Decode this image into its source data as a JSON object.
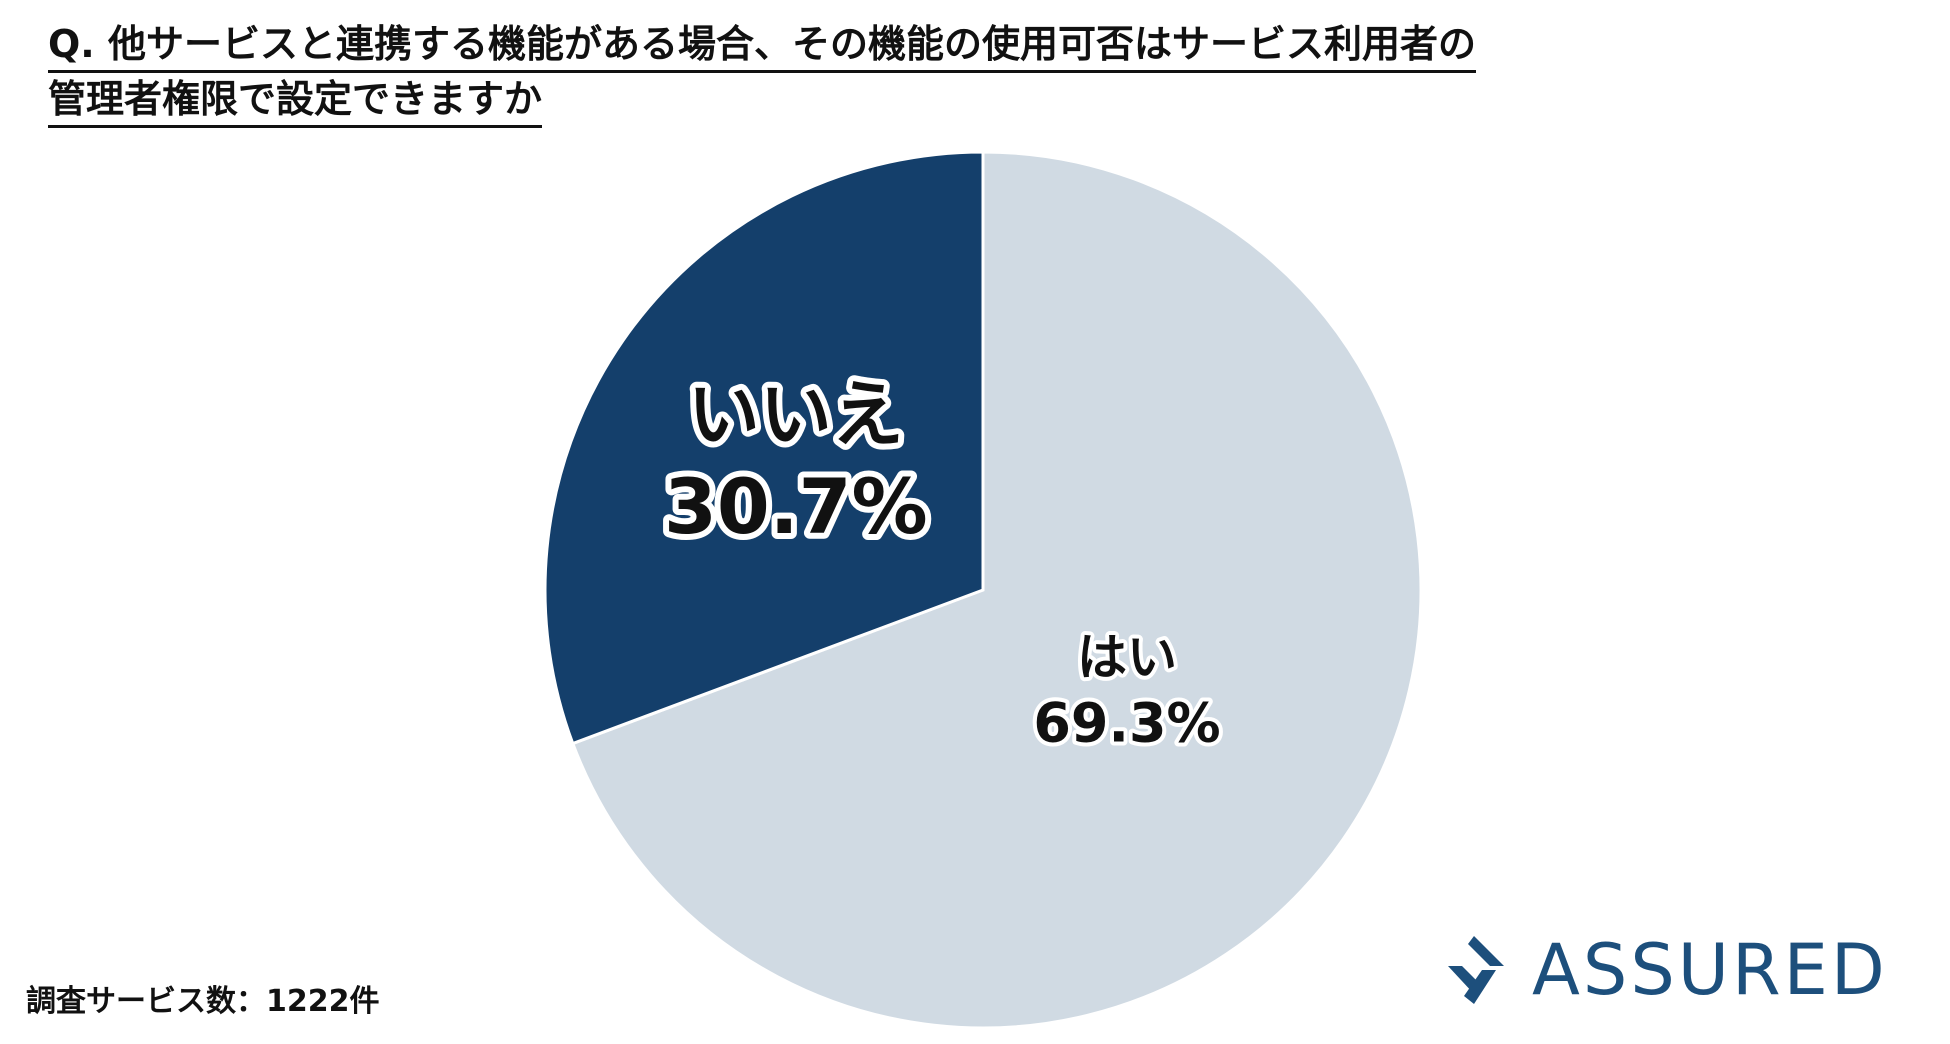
{
  "title": {
    "line1": "Q. 他サービスと連携する機能がある場合、その機能の使用可否はサービス利用者の",
    "line2": "管理者権限で設定できますか"
  },
  "chart_data": {
    "type": "pie",
    "title": "Q. 他サービスと連携する機能がある場合、その機能の使用可否はサービス利用者の管理者権限で設定できますか",
    "slices": [
      {
        "label": "はい",
        "value": 69.3,
        "value_label": "69.3%",
        "color": "#d0dae3"
      },
      {
        "label": "いいえ",
        "value": 30.7,
        "value_label": "30.7%",
        "color": "#143f6b"
      }
    ],
    "start_angle": "12 o'clock",
    "direction": "clockwise",
    "legend": "none"
  },
  "footnote": "調査サービス数：1222件",
  "logo": {
    "text": "ASSURED",
    "icon": "assured-logo-mark-icon",
    "color": "#1d4f7c"
  }
}
